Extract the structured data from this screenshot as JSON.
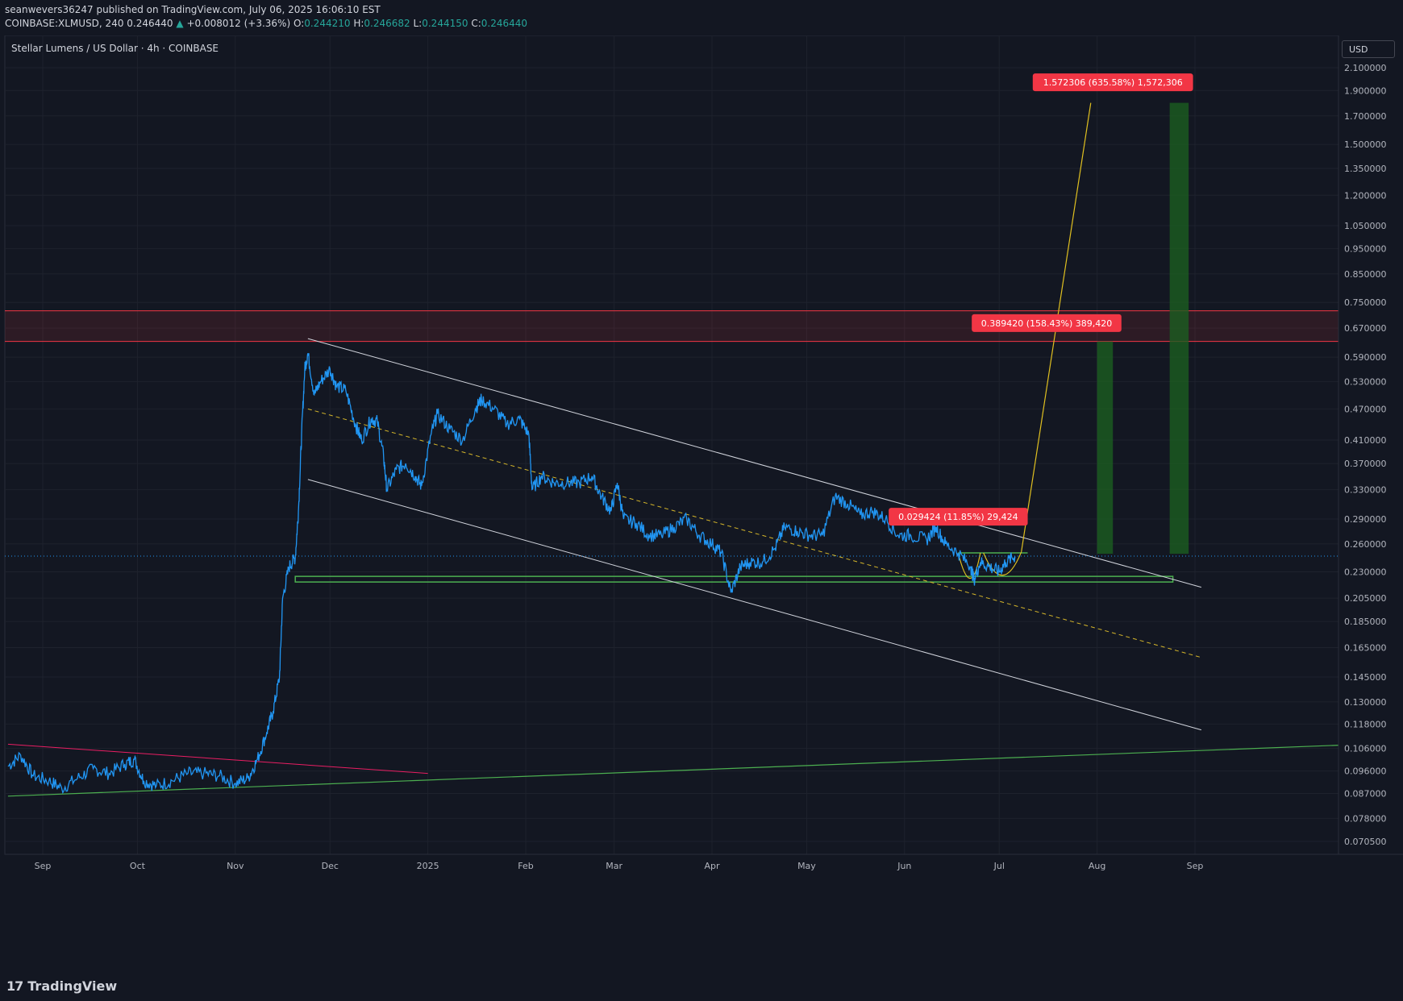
{
  "header": {
    "publisher_line": "seanwevers36247 published on TradingView.com, July 06, 2025 16:06:10 EST",
    "symbol": "COINBASE:XLMUSD, 240",
    "last": "0.246440",
    "change": "+0.008012 (+3.36%)",
    "o_label": "O:",
    "o": "0.244210",
    "h_label": "H:",
    "h": "0.246682",
    "l_label": "L:",
    "l": "0.244150",
    "c_label": "C:",
    "c": "0.246440"
  },
  "chart_title": "Stellar Lumens / US Dollar · 4h · COINBASE",
  "currency": "USD",
  "footer": {
    "brand": "TradingView"
  },
  "colors": {
    "background": "#131722",
    "price_line": "#2196f3",
    "channel": "#d1d4dc",
    "midline": "#d4b52a",
    "support": "#4caf50",
    "resistance_zone": "#f23645",
    "projection": "#e0c020",
    "target_bar": "#1b5e20",
    "downtrend": "#e91e63",
    "label_bg": "#f23645"
  },
  "chart_data": {
    "type": "line",
    "scale": "log",
    "ylim": [
      0.066,
      2.2
    ],
    "x_ticks": [
      "Sep",
      "Oct",
      "Nov",
      "Dec",
      "2025",
      "Feb",
      "Mar",
      "Apr",
      "May",
      "Jun",
      "Jul",
      "Aug",
      "Sep"
    ],
    "x_tick_dates": [
      "2024-09-01",
      "2024-10-01",
      "2024-11-01",
      "2024-12-01",
      "2025-01-01",
      "2025-02-01",
      "2025-03-01",
      "2025-04-01",
      "2025-05-01",
      "2025-06-01",
      "2025-07-01",
      "2025-08-01",
      "2025-09-01"
    ],
    "y_ticks": [
      "2.100000",
      "1.900000",
      "1.700000",
      "1.500000",
      "1.350000",
      "1.200000",
      "1.050000",
      "0.950000",
      "0.850000",
      "0.750000",
      "0.670000",
      "0.590000",
      "0.530000",
      "0.470000",
      "0.410000",
      "0.370000",
      "0.330000",
      "0.290000",
      "0.260000",
      "0.230000",
      "0.205000",
      "0.185000",
      "0.165000",
      "0.145000",
      "0.130000",
      "0.118000",
      "0.106000",
      "0.096000",
      "0.087000",
      "0.078000",
      "0.070500"
    ],
    "current_price": 0.24644,
    "series": [
      {
        "points": [
          [
            "2024-08-21",
            0.098
          ],
          [
            "2024-08-25",
            0.103
          ],
          [
            "2024-08-29",
            0.094
          ],
          [
            "2024-09-03",
            0.092
          ],
          [
            "2024-09-07",
            0.089
          ],
          [
            "2024-09-12",
            0.093
          ],
          [
            "2024-09-17",
            0.097
          ],
          [
            "2024-09-22",
            0.095
          ],
          [
            "2024-09-27",
            0.099
          ],
          [
            "2024-09-30",
            0.101
          ],
          [
            "2024-10-03",
            0.092
          ],
          [
            "2024-10-07",
            0.09
          ],
          [
            "2024-10-12",
            0.092
          ],
          [
            "2024-10-17",
            0.095
          ],
          [
            "2024-10-22",
            0.095
          ],
          [
            "2024-10-27",
            0.094
          ],
          [
            "2024-11-01",
            0.091
          ],
          [
            "2024-11-05",
            0.093
          ],
          [
            "2024-11-08",
            0.101
          ],
          [
            "2024-11-11",
            0.114
          ],
          [
            "2024-11-13",
            0.125
          ],
          [
            "2024-11-15",
            0.145
          ],
          [
            "2024-11-16",
            0.205
          ],
          [
            "2024-11-18",
            0.235
          ],
          [
            "2024-11-20",
            0.245
          ],
          [
            "2024-11-21",
            0.3
          ],
          [
            "2024-11-22",
            0.42
          ],
          [
            "2024-11-23",
            0.56
          ],
          [
            "2024-11-24",
            0.6
          ],
          [
            "2024-11-26",
            0.5
          ],
          [
            "2024-11-28",
            0.53
          ],
          [
            "2024-12-01",
            0.56
          ],
          [
            "2024-12-03",
            0.52
          ],
          [
            "2024-12-06",
            0.51
          ],
          [
            "2024-12-09",
            0.44
          ],
          [
            "2024-12-11",
            0.41
          ],
          [
            "2024-12-14",
            0.45
          ],
          [
            "2024-12-16",
            0.445
          ],
          [
            "2024-12-18",
            0.38
          ],
          [
            "2024-12-19",
            0.33
          ],
          [
            "2024-12-22",
            0.36
          ],
          [
            "2024-12-25",
            0.37
          ],
          [
            "2024-12-28",
            0.35
          ],
          [
            "2024-12-30",
            0.335
          ],
          [
            "2025-01-02",
            0.42
          ],
          [
            "2025-01-04",
            0.46
          ],
          [
            "2025-01-08",
            0.43
          ],
          [
            "2025-01-12",
            0.41
          ],
          [
            "2025-01-16",
            0.47
          ],
          [
            "2025-01-18",
            0.49
          ],
          [
            "2025-01-22",
            0.47
          ],
          [
            "2025-01-26",
            0.44
          ],
          [
            "2025-01-30",
            0.45
          ],
          [
            "2025-02-02",
            0.42
          ],
          [
            "2025-02-03",
            0.33
          ],
          [
            "2025-02-06",
            0.35
          ],
          [
            "2025-02-10",
            0.34
          ],
          [
            "2025-02-14",
            0.34
          ],
          [
            "2025-02-18",
            0.34
          ],
          [
            "2025-02-22",
            0.35
          ],
          [
            "2025-02-25",
            0.32
          ],
          [
            "2025-02-28",
            0.3
          ],
          [
            "2025-03-02",
            0.34
          ],
          [
            "2025-03-04",
            0.29
          ],
          [
            "2025-03-08",
            0.285
          ],
          [
            "2025-03-12",
            0.27
          ],
          [
            "2025-03-16",
            0.27
          ],
          [
            "2025-03-20",
            0.28
          ],
          [
            "2025-03-24",
            0.29
          ],
          [
            "2025-03-28",
            0.27
          ],
          [
            "2025-04-01",
            0.26
          ],
          [
            "2025-04-04",
            0.25
          ],
          [
            "2025-04-07",
            0.21
          ],
          [
            "2025-04-10",
            0.235
          ],
          [
            "2025-04-13",
            0.24
          ],
          [
            "2025-04-17",
            0.24
          ],
          [
            "2025-04-21",
            0.255
          ],
          [
            "2025-04-24",
            0.28
          ],
          [
            "2025-04-28",
            0.275
          ],
          [
            "2025-05-02",
            0.27
          ],
          [
            "2025-05-06",
            0.27
          ],
          [
            "2025-05-10",
            0.32
          ],
          [
            "2025-05-14",
            0.31
          ],
          [
            "2025-05-18",
            0.295
          ],
          [
            "2025-05-22",
            0.3
          ],
          [
            "2025-05-26",
            0.29
          ],
          [
            "2025-05-30",
            0.27
          ],
          [
            "2025-06-03",
            0.27
          ],
          [
            "2025-06-08",
            0.265
          ],
          [
            "2025-06-11",
            0.28
          ],
          [
            "2025-06-14",
            0.26
          ],
          [
            "2025-06-18",
            0.25
          ],
          [
            "2025-06-22",
            0.235
          ],
          [
            "2025-06-23",
            0.222
          ],
          [
            "2025-06-25",
            0.24
          ],
          [
            "2025-06-28",
            0.235
          ],
          [
            "2025-07-01",
            0.23
          ],
          [
            "2025-07-03",
            0.24
          ],
          [
            "2025-07-06",
            0.246
          ]
        ]
      }
    ],
    "drawings": {
      "channel_upper": [
        [
          "2024-11-24",
          0.64
        ],
        [
          "2025-09-03",
          0.215
        ]
      ],
      "channel_lower": [
        [
          "2024-11-24",
          0.345
        ],
        [
          "2025-09-03",
          0.115
        ]
      ],
      "channel_mid": [
        [
          "2024-11-24",
          0.47
        ],
        [
          "2025-09-03",
          0.158
        ]
      ],
      "support_zone": [
        0.22,
        0.2255
      ],
      "support_zone_range": [
        [
          "2024-11-20"
        ],
        [
          "2025-08-25"
        ]
      ],
      "long_uptrend": [
        [
          "2024-08-21",
          0.086
        ],
        [
          "2025-10-25",
          0.108
        ]
      ],
      "old_downtrend": [
        [
          "2024-08-21",
          0.108
        ],
        [
          "2025-01-01",
          0.095
        ]
      ],
      "resistance_zone": [
        0.632,
        0.723
      ],
      "neckline": [
        [
          "2025-06-18",
          0.25
        ],
        [
          "2025-07-10",
          0.25
        ]
      ],
      "projection": [
        [
          "2025-07-08",
          0.251
        ],
        [
          "2025-07-30",
          1.8
        ]
      ],
      "target_bars": [
        {
          "from": "2025-08-01",
          "to": "2025-08-06",
          "low": 0.249,
          "high": 0.632
        },
        {
          "from": "2025-08-24",
          "to": "2025-08-30",
          "low": 0.249,
          "high": 1.8
        }
      ],
      "labels": [
        {
          "text": "1.572306 (635.58%) 1,572,306",
          "date": "2025-08-06",
          "price": 1.97
        },
        {
          "text": "0.389420 (158.43%) 389,420",
          "date": "2025-07-16",
          "price": 0.685
        },
        {
          "text": "0.029424 (11.85%) 29,424",
          "date": "2025-06-18",
          "price": 0.293
        }
      ]
    }
  }
}
